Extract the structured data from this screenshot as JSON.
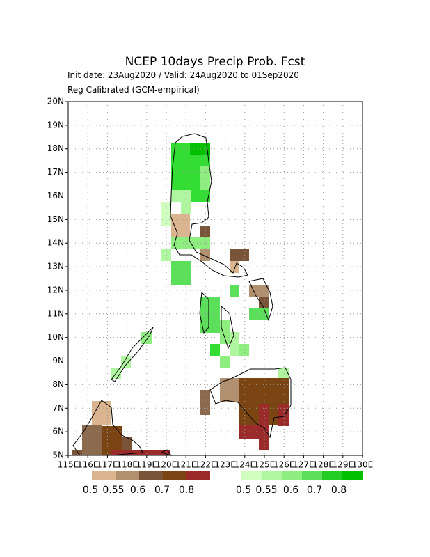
{
  "header": {
    "title": "NCEP 10days Precip Prob. Fcst",
    "line1": "Init date: 23Aug2020 / Valid: 24Aug2020 to 01Sep2020",
    "line2": "Reg Calibrated (GCM-empirical)"
  },
  "map": {
    "lat_labels": [
      "5N",
      "6N",
      "7N",
      "8N",
      "9N",
      "10N",
      "11N",
      "12N",
      "13N",
      "14N",
      "15N",
      "16N",
      "17N",
      "18N",
      "19N",
      "20N"
    ],
    "lon_labels": [
      "115E",
      "116E",
      "117E",
      "118E",
      "119E",
      "120E",
      "121E",
      "122E",
      "123E",
      "124E",
      "125E",
      "126E",
      "127E",
      "128E",
      "129E",
      "130E"
    ]
  },
  "legend": {
    "dry_labels": [
      "0.5",
      "0.55",
      "0.6",
      "0.7",
      "0.8"
    ],
    "wet_labels": [
      "0.5",
      "0.55",
      "0.6",
      "0.7",
      "0.8"
    ]
  }
}
